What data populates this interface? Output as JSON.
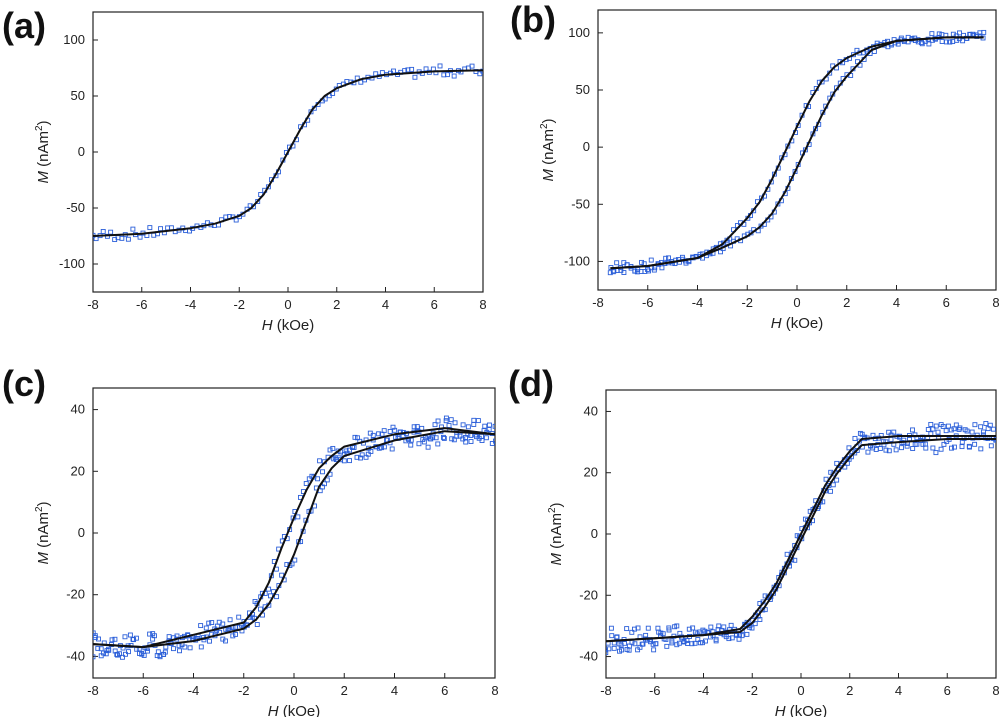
{
  "colors": {
    "model_line": "#111111",
    "data_marker": "#2b5fd9",
    "axis": "#222222"
  },
  "chart_data": [
    {
      "panel_label": "(a)",
      "type": "scatter",
      "xlabel_symbol": "H",
      "xlabel_unit": "(kOe)",
      "ylabel_symbol": "M",
      "ylabel_unit": "(nAm",
      "ylabel_sup": "2",
      "ylabel_close": ")",
      "xlim": [
        -8,
        8
      ],
      "ylim": [
        -125,
        125
      ],
      "xticks": [
        -8,
        -6,
        -4,
        -2,
        0,
        2,
        4,
        6,
        8
      ],
      "yticks": [
        -100,
        -50,
        0,
        50,
        100
      ],
      "hysteresis": false,
      "series": [
        {
          "kind": "line",
          "x": [
            -8,
            -6,
            -4,
            -3,
            -2,
            -1.5,
            -1,
            -0.5,
            0,
            0.5,
            1,
            1.5,
            2,
            3,
            4,
            6,
            8
          ],
          "y": [
            -75,
            -73,
            -68,
            -64,
            -57,
            -50,
            -38,
            -20,
            0,
            20,
            38,
            50,
            57,
            65,
            69,
            72,
            73
          ]
        },
        {
          "kind": "markers",
          "x": [
            -8,
            -6,
            -4,
            -3,
            -2,
            -1.5,
            -1,
            -0.5,
            0,
            0.5,
            1,
            1.5,
            2,
            3,
            4,
            6,
            8
          ],
          "y": [
            -75,
            -73,
            -68,
            -64,
            -57,
            -50,
            -38,
            -20,
            0,
            20,
            38,
            50,
            57,
            65,
            69,
            72,
            73
          ]
        }
      ]
    },
    {
      "panel_label": "(b)",
      "type": "scatter",
      "xlabel_symbol": "H",
      "xlabel_unit": "(kOe)",
      "ylabel_symbol": "M",
      "ylabel_unit": "(nAm",
      "ylabel_sup": "2",
      "ylabel_close": ")",
      "xlim": [
        -8,
        8
      ],
      "ylim": [
        -125,
        120
      ],
      "xticks": [
        -8,
        -6,
        -4,
        -2,
        0,
        2,
        4,
        6,
        8
      ],
      "yticks": [
        -100,
        -50,
        0,
        50,
        100
      ],
      "hysteresis": true,
      "series": [
        {
          "kind": "branch-descending",
          "x": [
            7.5,
            6,
            4,
            3,
            2,
            1.5,
            1,
            0.5,
            0,
            -0.5,
            -1,
            -1.5,
            -2,
            -3,
            -4,
            -6,
            -7.5
          ],
          "y": [
            96,
            96,
            93,
            88,
            78,
            70,
            58,
            40,
            18,
            -5,
            -28,
            -48,
            -62,
            -85,
            -97,
            -104,
            -106
          ]
        },
        {
          "kind": "branch-ascending",
          "x": [
            -7.5,
            -6,
            -4,
            -3,
            -2,
            -1.5,
            -1,
            -0.5,
            0,
            0.5,
            1,
            1.5,
            2,
            3,
            4,
            6,
            7.5
          ],
          "y": [
            -106,
            -104,
            -97,
            -88,
            -78,
            -70,
            -58,
            -40,
            -18,
            5,
            28,
            48,
            62,
            85,
            93,
            96,
            96
          ]
        }
      ]
    },
    {
      "panel_label": "(c)",
      "type": "scatter",
      "xlabel_symbol": "H",
      "xlabel_unit": "(kOe)",
      "ylabel_symbol": "M",
      "ylabel_unit": "(nAm",
      "ylabel_sup": "2",
      "ylabel_close": ")",
      "xlim": [
        -8,
        8
      ],
      "ylim": [
        -47,
        47
      ],
      "xticks": [
        -8,
        -6,
        -4,
        -2,
        0,
        2,
        4,
        6,
        8
      ],
      "yticks": [
        -40,
        -20,
        0,
        20,
        40
      ],
      "hysteresis": true,
      "series": [
        {
          "kind": "branch-descending",
          "x": [
            8,
            6,
            4,
            2,
            1.5,
            1,
            0.5,
            0,
            -0.5,
            -1,
            -1.5,
            -2,
            -4,
            -6,
            -8
          ],
          "y": [
            32,
            34,
            32,
            28,
            25,
            21,
            14,
            5,
            -5,
            -16,
            -24,
            -29,
            -33,
            -37,
            -36
          ]
        },
        {
          "kind": "branch-ascending",
          "x": [
            -8,
            -6,
            -4,
            -2,
            -1.5,
            -1,
            -0.5,
            0,
            0.5,
            1,
            1.5,
            2,
            4,
            6,
            8
          ],
          "y": [
            -36,
            -37,
            -35,
            -31,
            -28,
            -23,
            -16,
            -7,
            4,
            15,
            21,
            25,
            30,
            33,
            32
          ]
        }
      ]
    },
    {
      "panel_label": "(d)",
      "type": "scatter",
      "xlabel_symbol": "H",
      "xlabel_unit": "(kOe)",
      "ylabel_symbol": "M",
      "ylabel_unit": "(nAm",
      "ylabel_sup": "2",
      "ylabel_close": ")",
      "xlim": [
        -8,
        8
      ],
      "ylim": [
        -47,
        47
      ],
      "xticks": [
        -8,
        -6,
        -4,
        -2,
        0,
        2,
        4,
        6,
        8
      ],
      "yticks": [
        -40,
        -20,
        0,
        20,
        40
      ],
      "hysteresis": true,
      "series": [
        {
          "kind": "branch-descending",
          "x": [
            8,
            6,
            4,
            2.5,
            2,
            1.5,
            1,
            0.5,
            0,
            -0.5,
            -1,
            -1.5,
            -2,
            -2.5,
            -4,
            -6,
            -8
          ],
          "y": [
            32,
            32,
            32,
            31,
            27,
            22,
            16,
            8,
            0,
            -8,
            -16,
            -22,
            -27,
            -31,
            -33,
            -34,
            -35
          ]
        },
        {
          "kind": "branch-ascending",
          "x": [
            -8,
            -6,
            -4,
            -2.5,
            -2,
            -1.5,
            -1,
            -0.5,
            0,
            0.5,
            1,
            1.5,
            2,
            2.5,
            4,
            6,
            8
          ],
          "y": [
            -35,
            -34,
            -33,
            -32,
            -29,
            -24,
            -18,
            -10,
            -2,
            6,
            14,
            20,
            25,
            29,
            30,
            31,
            31
          ]
        }
      ]
    }
  ]
}
